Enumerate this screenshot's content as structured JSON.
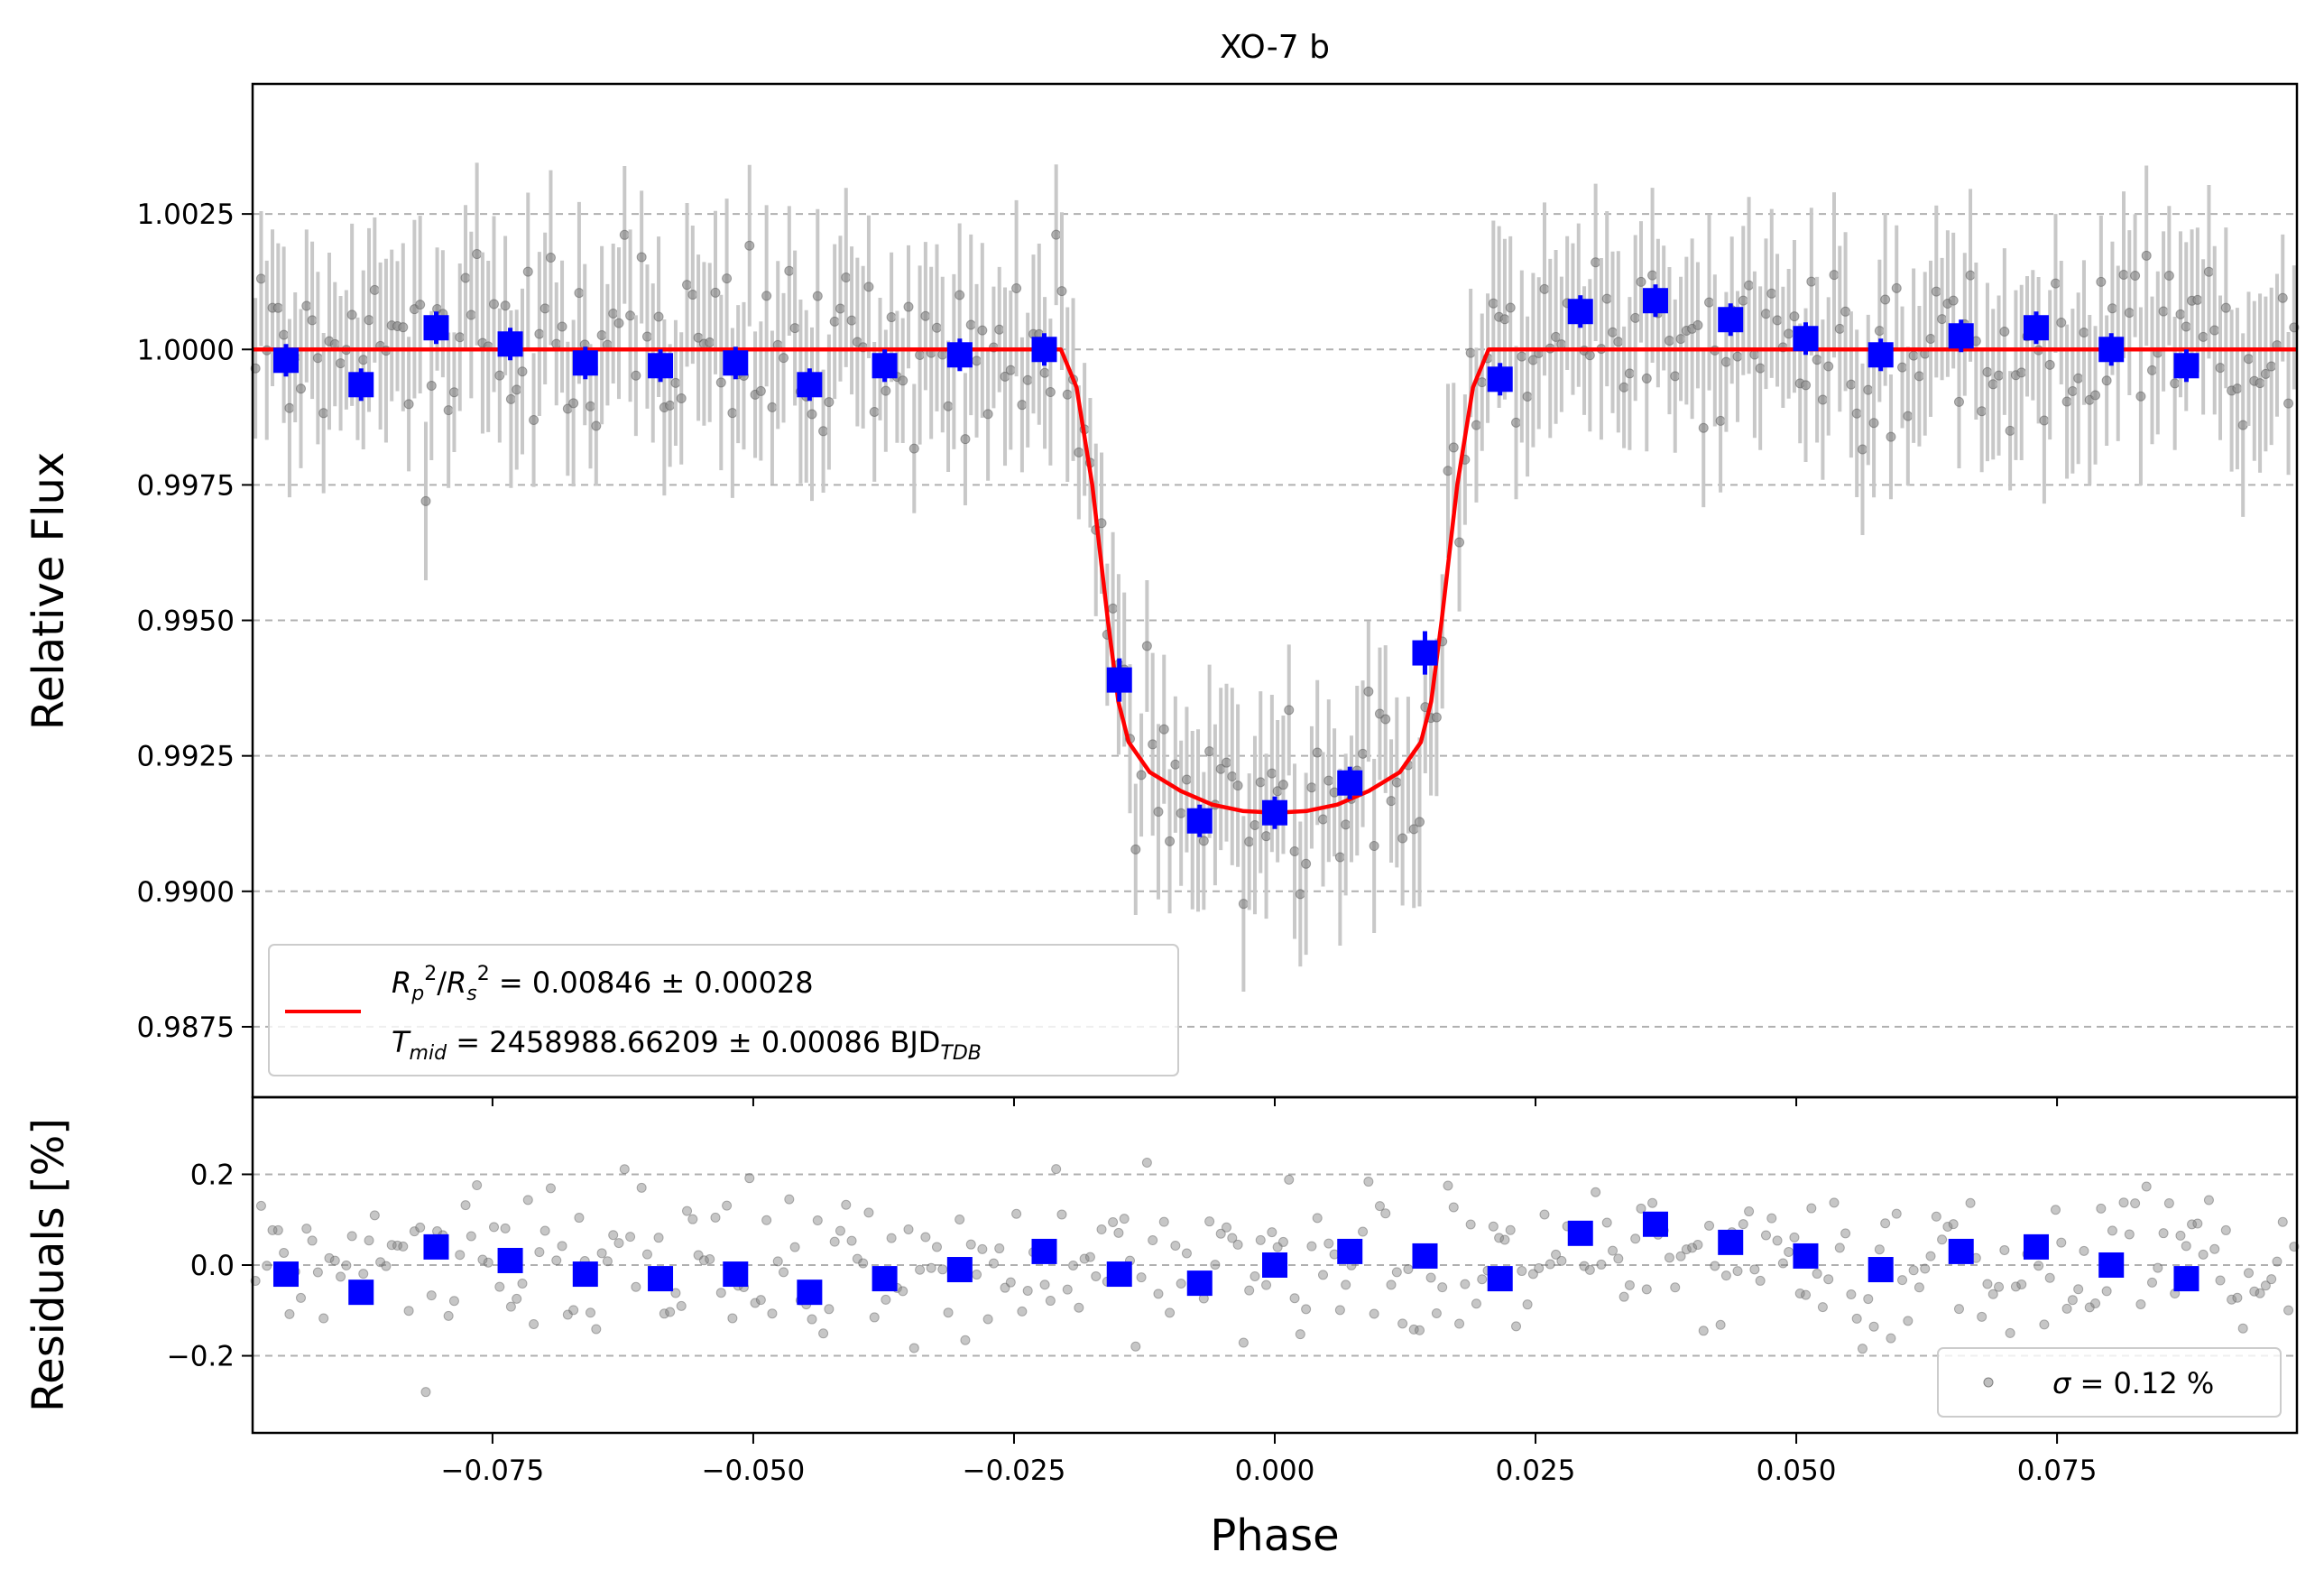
{
  "colors": {
    "raw": "#808080",
    "raw_err": "#c8c8c8",
    "binned": "#0000ff",
    "model": "#ff0000",
    "grid": "#b0b0b0"
  },
  "chart_data": [
    {
      "type": "scatter",
      "title": "XO-7 b",
      "xlabel": "",
      "ylabel": "Relative Flux",
      "xlim": [
        -0.098,
        0.098
      ],
      "ylim": [
        0.9862,
        1.0049
      ],
      "xticks": [
        "−0.075",
        "−0.050",
        "−0.025",
        "0.000",
        "0.025",
        "0.050",
        "0.075"
      ],
      "xtick_values": [
        -0.075,
        -0.05,
        -0.025,
        0.0,
        0.025,
        0.05,
        0.075
      ],
      "yticks": [
        "0.9875",
        "0.9900",
        "0.9925",
        "0.9950",
        "0.9975",
        "1.0000",
        "1.0025"
      ],
      "ytick_values": [
        0.9875,
        0.99,
        0.9925,
        0.995,
        0.9975,
        1.0,
        1.0025
      ],
      "grid": "horizontal dashed",
      "legend": {
        "placement": "lower-left",
        "entries": [
          {
            "line1_lhs": "Rₚ²/Rₛ²",
            "line1": " = 0.00846 ± 0.00028",
            "line2_lhs": "T",
            "line2_sub": "mid",
            "line2": " = 2458988.66209 ± 0.00086 BJD",
            "line2_unit_sub": "TDB"
          }
        ]
      },
      "series": [
        {
          "name": "binned",
          "style": "blue squares with error bars",
          "x": [
            -0.0948,
            -0.0876,
            -0.0804,
            -0.0733,
            -0.0661,
            -0.0589,
            -0.0517,
            -0.0446,
            -0.0374,
            -0.0302,
            -0.0221,
            -0.0149,
            -0.0072,
            0.0,
            0.0072,
            0.0144,
            0.0216,
            0.0293,
            0.0365,
            0.0437,
            0.0509,
            0.0581,
            0.0658,
            0.073,
            0.0802,
            0.0874
          ],
          "y": [
            0.9998,
            0.99935,
            1.0004,
            1.0001,
            0.99975,
            0.9997,
            0.99975,
            0.99935,
            0.9997,
            0.9999,
            1.0,
            0.9939,
            0.9913,
            0.99145,
            0.992,
            0.9944,
            0.99945,
            1.0007,
            1.0009,
            1.00055,
            1.0002,
            0.9999,
            1.00025,
            1.0004,
            1.0,
            0.9997
          ],
          "err": [
            0.0003,
            0.0003,
            0.0003,
            0.0003,
            0.0003,
            0.0003,
            0.0003,
            0.0003,
            0.0003,
            0.0003,
            0.0003,
            0.0004,
            0.0003,
            0.0003,
            0.0003,
            0.0004,
            0.0003,
            0.0003,
            0.0003,
            0.0003,
            0.0003,
            0.0003,
            0.0003,
            0.0003,
            0.0003,
            0.0003
          ]
        },
        {
          "name": "model",
          "style": "red line",
          "x": [
            -0.098,
            -0.0205,
            -0.019,
            -0.0175,
            -0.016,
            -0.015,
            -0.014,
            -0.012,
            -0.009,
            -0.006,
            -0.003,
            0.0,
            0.003,
            0.006,
            0.009,
            0.012,
            0.014,
            0.015,
            0.016,
            0.0175,
            0.019,
            0.0205,
            0.098
          ],
          "y": [
            1.0,
            1.0,
            0.9993,
            0.9975,
            0.995,
            0.9935,
            0.99275,
            0.9922,
            0.99185,
            0.9916,
            0.99148,
            0.99145,
            0.99148,
            0.9916,
            0.99185,
            0.9922,
            0.99275,
            0.9935,
            0.995,
            0.9975,
            0.9993,
            1.0,
            1.0
          ]
        }
      ]
    },
    {
      "type": "scatter",
      "xlabel": "Phase",
      "ylabel": "Residuals [%]",
      "xlim": [
        -0.098,
        0.098
      ],
      "ylim": [
        -0.37,
        0.37
      ],
      "xticks": [
        "−0.075",
        "−0.050",
        "−0.025",
        "0.000",
        "0.025",
        "0.050",
        "0.075"
      ],
      "xtick_values": [
        -0.075,
        -0.05,
        -0.025,
        0.0,
        0.025,
        0.05,
        0.075
      ],
      "yticks": [
        "−0.2",
        "0.0",
        "0.2"
      ],
      "ytick_values": [
        -0.2,
        0.0,
        0.2
      ],
      "grid": "horizontal dashed",
      "legend": {
        "placement": "lower-right",
        "entries": [
          {
            "label_sym": "σ",
            "label": " = 0.12 %"
          }
        ]
      },
      "series": [
        {
          "name": "binned",
          "style": "blue squares",
          "x": [
            -0.0948,
            -0.0876,
            -0.0804,
            -0.0733,
            -0.0661,
            -0.0589,
            -0.0517,
            -0.0446,
            -0.0374,
            -0.0302,
            -0.0221,
            -0.0149,
            -0.0072,
            0.0,
            0.0072,
            0.0144,
            0.0216,
            0.0293,
            0.0365,
            0.0437,
            0.0509,
            0.0581,
            0.0658,
            0.073,
            0.0802,
            0.0874
          ],
          "y": [
            -0.02,
            -0.06,
            0.04,
            0.01,
            -0.02,
            -0.03,
            -0.02,
            -0.06,
            -0.03,
            -0.01,
            0.03,
            -0.02,
            -0.04,
            0.0,
            0.03,
            0.02,
            -0.03,
            0.07,
            0.09,
            0.05,
            0.02,
            -0.01,
            0.03,
            0.04,
            0.0,
            -0.03
          ]
        }
      ]
    }
  ]
}
